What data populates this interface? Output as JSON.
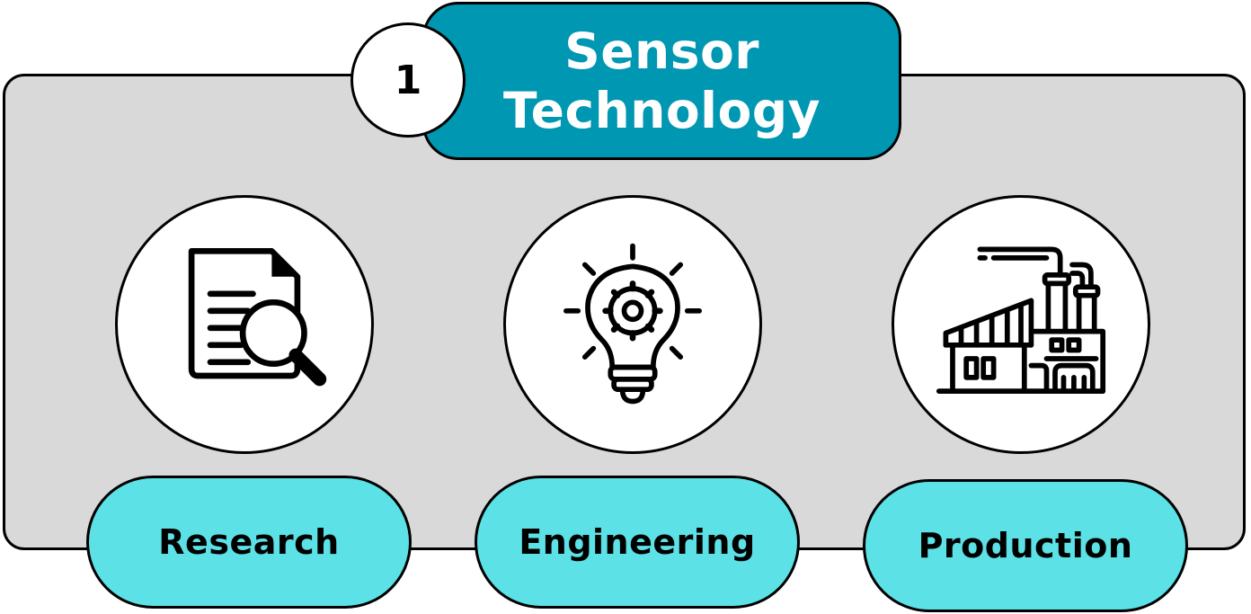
{
  "title": {
    "number": "1",
    "text": "Sensor Technology"
  },
  "stages": [
    {
      "label": "Research",
      "icon": "document-search-icon"
    },
    {
      "label": "Engineering",
      "icon": "lightbulb-gear-icon"
    },
    {
      "label": "Production",
      "icon": "factory-icon"
    }
  ],
  "colors": {
    "panel": "#d9d9d9",
    "title_fill": "#0097b2",
    "pill_fill": "#5ce1e6",
    "outline": "#000000"
  }
}
